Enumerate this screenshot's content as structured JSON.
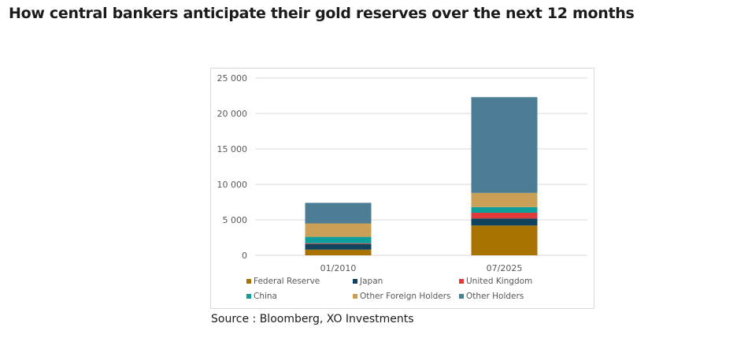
{
  "title": "How central bankers anticipate their gold reserves over the next 12 months",
  "source": "Source : Bloomberg, XO Investments",
  "chart_data": {
    "type": "bar",
    "stacked": true,
    "categories": [
      "01/2010",
      "07/2025"
    ],
    "ylim": [
      0,
      25000
    ],
    "yticks": [
      0,
      5000,
      10000,
      15000,
      20000,
      25000
    ],
    "ytick_labels": [
      "0",
      "5 000",
      "10 000",
      "15 000",
      "20 000",
      "25 000"
    ],
    "grid": true,
    "legend_position": "bottom",
    "series": [
      {
        "name": "Federal Reserve",
        "color": "#a87300",
        "values": [
          800,
          4200
        ]
      },
      {
        "name": "Japan",
        "color": "#12435e",
        "values": [
          800,
          1000
        ]
      },
      {
        "name": "United Kingdom",
        "color": "#e03a3a",
        "values": [
          100,
          800
        ]
      },
      {
        "name": "China",
        "color": "#0e9f9d",
        "values": [
          900,
          800
        ]
      },
      {
        "name": "Other Foreign Holders",
        "color": "#c9a055",
        "values": [
          1900,
          2000
        ]
      },
      {
        "name": "Other Holders",
        "color": "#4d7d94",
        "values": [
          2900,
          13500
        ]
      }
    ]
  }
}
